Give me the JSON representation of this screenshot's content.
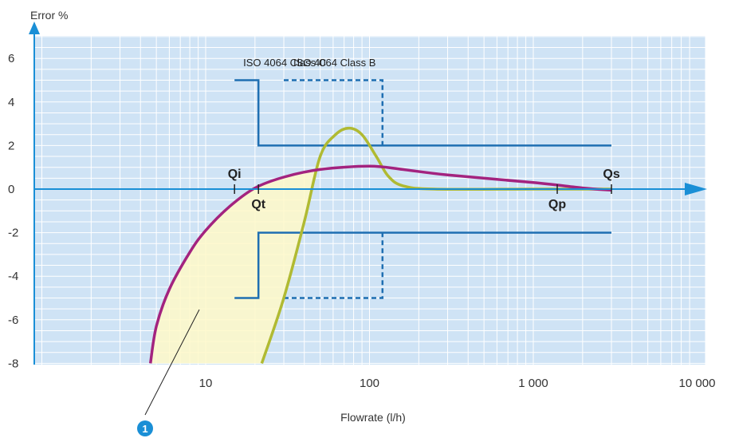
{
  "chart_data": {
    "type": "line",
    "title": "",
    "ylabel": "Error %",
    "xlabel": "Flowrate (l/h)",
    "x_scale": "log",
    "xlim": [
      1,
      10000
    ],
    "ylim": [
      -8,
      7
    ],
    "grid": true,
    "y_ticks": [
      {
        "value": 6,
        "label": "6"
      },
      {
        "value": 4,
        "label": "4"
      },
      {
        "value": 2,
        "label": "2"
      },
      {
        "value": 0,
        "label": "0"
      },
      {
        "value": -2,
        "label": "-2"
      },
      {
        "value": -4,
        "label": "-4"
      },
      {
        "value": -6,
        "label": "-6"
      },
      {
        "value": -8,
        "label": "-8"
      }
    ],
    "x_ticks": [
      {
        "value": 10,
        "label": "10"
      },
      {
        "value": 100,
        "label": "100"
      },
      {
        "value": 1000,
        "label": "1 000"
      },
      {
        "value": 10000,
        "label": "10 000"
      }
    ],
    "series": [
      {
        "label": "ISO 4064 Class C",
        "style": "solid",
        "color": "#1f6fb2",
        "upper": [
          [
            15,
            5
          ],
          [
            21,
            5
          ],
          [
            21,
            2
          ],
          [
            3000,
            2
          ]
        ],
        "lower": [
          [
            15,
            -5
          ],
          [
            21,
            -5
          ],
          [
            21,
            -2
          ],
          [
            3000,
            -2
          ]
        ]
      },
      {
        "label": "ISO 4064 Class B",
        "style": "dashed",
        "color": "#1f6fb2",
        "upper": [
          [
            30,
            5
          ],
          [
            120,
            5
          ],
          [
            120,
            2
          ]
        ],
        "lower": [
          [
            30,
            -5
          ],
          [
            120,
            -5
          ],
          [
            120,
            -2
          ]
        ]
      },
      {
        "color": "#b0ba32",
        "style": "solid",
        "points": [
          [
            22,
            -8
          ],
          [
            30,
            -5
          ],
          [
            40,
            -1.5
          ],
          [
            50,
            1.5
          ],
          [
            62,
            2.5
          ],
          [
            75,
            2.8
          ],
          [
            90,
            2.5
          ],
          [
            110,
            1.5
          ],
          [
            130,
            0.6
          ],
          [
            160,
            0.15
          ],
          [
            250,
            0.0
          ],
          [
            1000,
            0.0
          ],
          [
            3000,
            0.0
          ]
        ]
      },
      {
        "color": "#a3237f",
        "style": "solid",
        "points": [
          [
            4.6,
            -8
          ],
          [
            5,
            -6.3
          ],
          [
            6,
            -4.6
          ],
          [
            8,
            -2.9
          ],
          [
            10,
            -1.9
          ],
          [
            14,
            -0.8
          ],
          [
            20,
            0.05
          ],
          [
            30,
            0.55
          ],
          [
            50,
            0.9
          ],
          [
            100,
            1.05
          ],
          [
            160,
            0.9
          ],
          [
            300,
            0.65
          ],
          [
            1000,
            0.3
          ],
          [
            2000,
            0.05
          ],
          [
            3000,
            -0.05
          ]
        ]
      }
    ],
    "markers": [
      {
        "label": "Qi",
        "x": 15,
        "y": 0,
        "label_pos": "above"
      },
      {
        "label": "Qt",
        "x": 21,
        "y": 0,
        "label_pos": "below"
      },
      {
        "label": "Qp",
        "x": 1400,
        "y": 0,
        "label_pos": "below"
      },
      {
        "label": "Qs",
        "x": 3000,
        "y": 0,
        "label_pos": "above"
      }
    ],
    "shaded_region": {
      "color": "#fff9c8",
      "between": "magenta curve and olive curve below 0.9"
    },
    "annotation": {
      "label": "1"
    },
    "colors": {
      "plot_background": "#cfe3f5",
      "grid": "#ffffff",
      "axis": "#1a8fd6",
      "arrow": "#1a8fd6",
      "annotation_badge": "#1a8fd6"
    }
  }
}
